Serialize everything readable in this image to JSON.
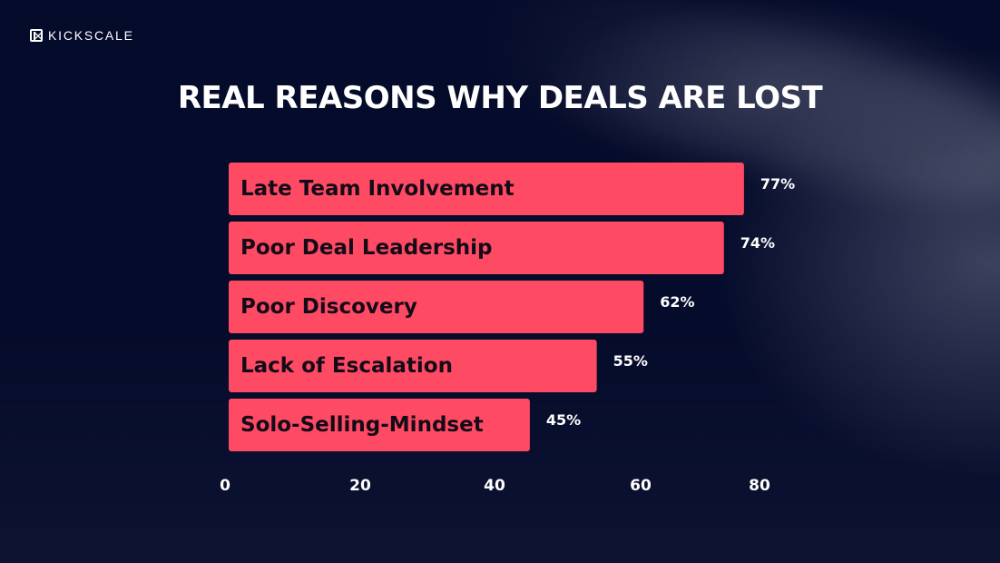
{
  "brand": {
    "name": "KICKSCALE",
    "icon": "kickscale-logo-icon"
  },
  "colors": {
    "background": "#050b2a",
    "bar": "#ff4a64",
    "text": "#ffffff",
    "bar_text": "#140b18"
  },
  "chart_data": {
    "type": "bar",
    "orientation": "horizontal",
    "title": "REAL REASONS WHY DEALS ARE LOST",
    "categories": [
      "Late Team Involvement",
      "Poor Deal Leadership",
      "Poor Discovery",
      "Lack of Escalation",
      "Solo-Selling-Mindset"
    ],
    "values": [
      77,
      74,
      62,
      55,
      45
    ],
    "value_labels": [
      "77%",
      "74%",
      "62%",
      "55%",
      "45%"
    ],
    "xlim": [
      0,
      80
    ],
    "x_ticks": [
      0,
      20,
      40,
      60,
      80
    ],
    "x_tick_labels": [
      "0",
      "20",
      "40",
      "60",
      "80"
    ],
    "grid": false,
    "legend": "none"
  }
}
